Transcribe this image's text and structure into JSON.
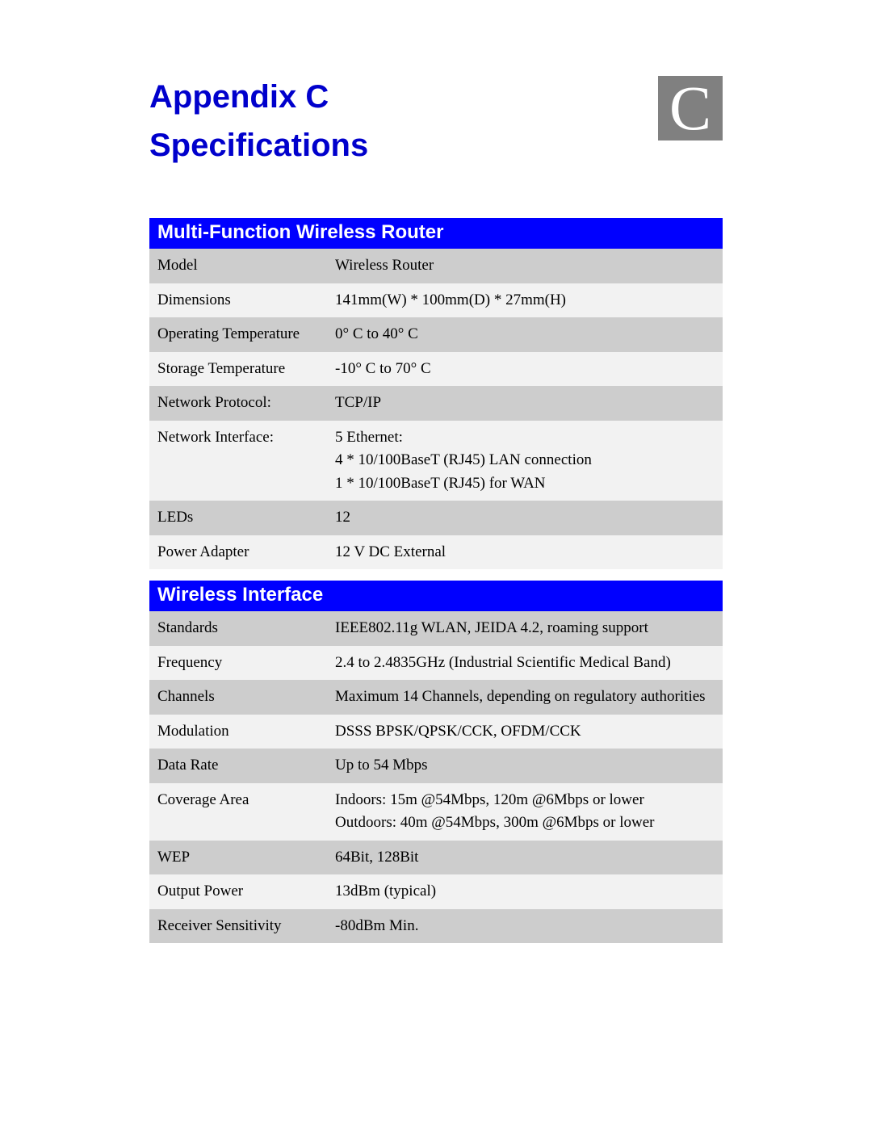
{
  "header": {
    "title_line1": "Appendix C",
    "title_line2": "Specifications",
    "badge_letter": "C",
    "title_color": "#0000cc",
    "badge_bg": "#808080",
    "badge_fg": "#ffffff"
  },
  "sections": [
    {
      "title": "Multi-Function Wireless Router",
      "header_bg": "#0000ff",
      "header_fg": "#ffffff",
      "row_colors": {
        "odd": "#cdcdcd",
        "even": "#f2f2f2"
      },
      "rows": [
        {
          "label": "Model",
          "value": "Wireless Router"
        },
        {
          "label": "Dimensions",
          "value": "141mm(W) * 100mm(D) * 27mm(H)"
        },
        {
          "label": "Operating Temperature",
          "value": "0° C to 40° C"
        },
        {
          "label": "Storage Temperature",
          "value": "-10° C to 70° C"
        },
        {
          "label": "Network Protocol:",
          "value": "TCP/IP"
        },
        {
          "label": "Network Interface:",
          "value": "5 Ethernet:\n4 * 10/100BaseT (RJ45) LAN connection\n1 * 10/100BaseT (RJ45) for WAN"
        },
        {
          "label": "LEDs",
          "value": "12"
        },
        {
          "label": "Power Adapter",
          "value": "12 V DC External"
        }
      ]
    },
    {
      "title": "Wireless Interface",
      "header_bg": "#0000ff",
      "header_fg": "#ffffff",
      "row_colors": {
        "odd": "#cdcdcd",
        "even": "#f2f2f2"
      },
      "rows": [
        {
          "label": "Standards",
          "value": "IEEE802.11g WLAN, JEIDA 4.2, roaming support"
        },
        {
          "label": "Frequency",
          "value": "2.4 to 2.4835GHz (Industrial Scientific Medical Band)"
        },
        {
          "label": "Channels",
          "value": "Maximum 14 Channels, depending on regulatory authorities"
        },
        {
          "label": "Modulation",
          "value": "DSSS BPSK/QPSK/CCK, OFDM/CCK"
        },
        {
          "label": "Data Rate",
          "value": "Up to 54 Mbps"
        },
        {
          "label": "Coverage Area",
          "value": "Indoors: 15m @54Mbps, 120m @6Mbps or lower\nOutdoors: 40m @54Mbps, 300m @6Mbps or lower"
        },
        {
          "label": "WEP",
          "value": "64Bit, 128Bit"
        },
        {
          "label": "Output Power",
          "value": "13dBm (typical)"
        },
        {
          "label": "Receiver Sensitivity",
          "value": "-80dBm Min."
        }
      ]
    }
  ]
}
